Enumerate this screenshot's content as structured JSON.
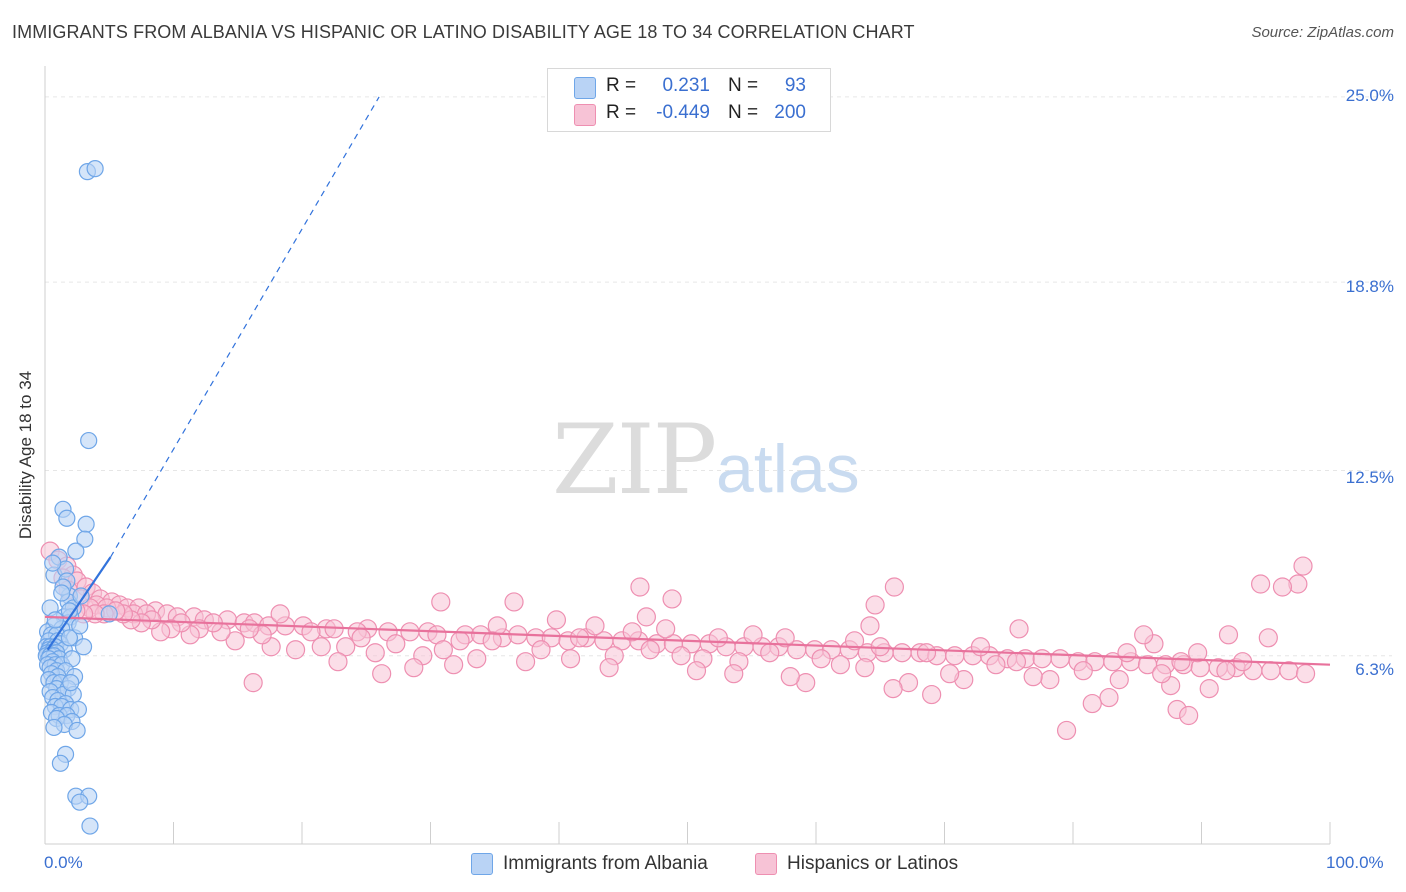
{
  "title": "IMMIGRANTS FROM ALBANIA VS HISPANIC OR LATINO DISABILITY AGE 18 TO 34 CORRELATION CHART",
  "source": "Source: ZipAtlas.com",
  "watermark": {
    "zip": "ZIP",
    "atlas": "atlas"
  },
  "colors": {
    "blue": "#6fa6e8",
    "blue_fill": "#b9d3f5",
    "blue_line": "#3273dc",
    "pink": "#ee8fb1",
    "pink_fill": "#f7c3d6",
    "pink_line": "#e8729c",
    "tick_text": "#3a6fd0",
    "grid": "#e6e6e6"
  },
  "legend": {
    "rows": [
      {
        "r_label": "R =",
        "r_value": "0.231",
        "n_label": "N =",
        "n_value": "93"
      },
      {
        "r_label": "R =",
        "r_value": "-0.449",
        "n_label": "N =",
        "n_value": "200"
      }
    ]
  },
  "bottom_legend": [
    "Immigrants from Albania",
    "Hispanics or Latinos"
  ],
  "chart_data": {
    "type": "scatter",
    "title": "IMMIGRANTS FROM ALBANIA VS HISPANIC OR LATINO DISABILITY AGE 18 TO 34 CORRELATION CHART",
    "xlabel": "",
    "ylabel": "Disability Age 18 to 34",
    "xlim": [
      0,
      100
    ],
    "ylim": [
      0,
      25.8
    ],
    "y_ticks": [
      6.3,
      12.5,
      18.8,
      25.0
    ],
    "y_tick_labels": [
      "6.3%",
      "12.5%",
      "18.8%",
      "25.0%"
    ],
    "x_tick_labels": [
      "0.0%",
      "100.0%"
    ],
    "grid": true,
    "series": [
      {
        "name": "Immigrants from Albania",
        "R": 0.231,
        "N": 93,
        "trend": {
          "x": [
            0.2,
            5.1
          ],
          "y": [
            6.5,
            9.6
          ],
          "dashed_to": [
            26,
            25.0
          ]
        },
        "points": [
          [
            3.3,
            22.5
          ],
          [
            3.9,
            22.6
          ],
          [
            3.4,
            13.5
          ],
          [
            1.4,
            11.2
          ],
          [
            1.7,
            10.9
          ],
          [
            3.2,
            10.7
          ],
          [
            3.1,
            10.2
          ],
          [
            2.4,
            9.8
          ],
          [
            1.1,
            9.6
          ],
          [
            0.7,
            9.0
          ],
          [
            1.6,
            9.2
          ],
          [
            1.7,
            8.8
          ],
          [
            1.9,
            8.3
          ],
          [
            1.4,
            8.6
          ],
          [
            1.8,
            8.1
          ],
          [
            2.2,
            7.9
          ],
          [
            1.5,
            7.6
          ],
          [
            2.0,
            7.6
          ],
          [
            0.4,
            7.9
          ],
          [
            1.8,
            7.4
          ],
          [
            0.7,
            7.3
          ],
          [
            1.3,
            7.2
          ],
          [
            0.2,
            7.1
          ],
          [
            0.5,
            7.0
          ],
          [
            0.9,
            7.0
          ],
          [
            2.3,
            6.9
          ],
          [
            0.3,
            6.8
          ],
          [
            1.0,
            6.8
          ],
          [
            1.2,
            6.7
          ],
          [
            0.1,
            6.6
          ],
          [
            0.4,
            6.6
          ],
          [
            0.8,
            6.6
          ],
          [
            0.3,
            6.5
          ],
          [
            0.6,
            6.5
          ],
          [
            1.5,
            6.5
          ],
          [
            0.2,
            6.4
          ],
          [
            0.5,
            6.4
          ],
          [
            0.9,
            6.4
          ],
          [
            0.1,
            6.3
          ],
          [
            0.4,
            6.3
          ],
          [
            0.7,
            6.3
          ],
          [
            1.1,
            6.2
          ],
          [
            0.3,
            6.2
          ],
          [
            0.6,
            6.1
          ],
          [
            0.2,
            6.0
          ],
          [
            0.8,
            6.0
          ],
          [
            1.3,
            6.0
          ],
          [
            2.1,
            6.2
          ],
          [
            0.4,
            5.9
          ],
          [
            0.9,
            5.8
          ],
          [
            1.6,
            5.8
          ],
          [
            0.5,
            5.7
          ],
          [
            1.0,
            5.6
          ],
          [
            2.3,
            5.6
          ],
          [
            0.3,
            5.5
          ],
          [
            0.7,
            5.4
          ],
          [
            1.2,
            5.4
          ],
          [
            0.9,
            5.2
          ],
          [
            1.8,
            5.2
          ],
          [
            0.4,
            5.1
          ],
          [
            1.4,
            5.0
          ],
          [
            2.2,
            5.0
          ],
          [
            0.6,
            4.9
          ],
          [
            1.0,
            4.8
          ],
          [
            1.6,
            4.7
          ],
          [
            0.8,
            4.6
          ],
          [
            1.3,
            4.6
          ],
          [
            2.0,
            4.5
          ],
          [
            2.6,
            4.5
          ],
          [
            0.5,
            4.4
          ],
          [
            1.1,
            4.3
          ],
          [
            1.7,
            4.3
          ],
          [
            0.9,
            4.2
          ],
          [
            2.1,
            4.1
          ],
          [
            1.5,
            4.0
          ],
          [
            0.7,
            3.9
          ],
          [
            2.5,
            3.8
          ],
          [
            1.6,
            3.0
          ],
          [
            1.2,
            2.7
          ],
          [
            2.4,
            1.6
          ],
          [
            3.4,
            1.6
          ],
          [
            2.7,
            1.4
          ],
          [
            3.5,
            0.6
          ],
          [
            5.0,
            7.7
          ],
          [
            3.0,
            6.6
          ],
          [
            1.9,
            6.9
          ],
          [
            2.7,
            7.3
          ],
          [
            0.8,
            7.5
          ],
          [
            1.9,
            7.8
          ],
          [
            1.3,
            8.4
          ],
          [
            2.8,
            8.3
          ],
          [
            0.6,
            9.4
          ],
          [
            2.0,
            5.4
          ]
        ]
      },
      {
        "name": "Hispanics or Latinos",
        "R": -0.449,
        "N": 200,
        "trend": {
          "x": [
            0.0,
            100.0
          ],
          "y": [
            7.6,
            6.0
          ]
        },
        "points": [
          [
            0.4,
            9.8
          ],
          [
            1.0,
            9.5
          ],
          [
            1.7,
            9.3
          ],
          [
            2.2,
            9.0
          ],
          [
            1.4,
            8.9
          ],
          [
            2.5,
            8.8
          ],
          [
            3.2,
            8.6
          ],
          [
            1.8,
            8.5
          ],
          [
            3.7,
            8.4
          ],
          [
            4.3,
            8.2
          ],
          [
            2.8,
            8.2
          ],
          [
            5.2,
            8.1
          ],
          [
            4.0,
            8.0
          ],
          [
            5.8,
            8.0
          ],
          [
            6.4,
            7.9
          ],
          [
            3.5,
            7.9
          ],
          [
            4.8,
            7.9
          ],
          [
            7.3,
            7.9
          ],
          [
            8.6,
            7.8
          ],
          [
            6.9,
            7.7
          ],
          [
            9.5,
            7.7
          ],
          [
            7.9,
            7.7
          ],
          [
            10.3,
            7.6
          ],
          [
            11.6,
            7.6
          ],
          [
            12.4,
            7.5
          ],
          [
            14.2,
            7.5
          ],
          [
            15.5,
            7.4
          ],
          [
            16.3,
            7.4
          ],
          [
            18.7,
            7.3
          ],
          [
            17.4,
            7.3
          ],
          [
            20.1,
            7.3
          ],
          [
            21.9,
            7.2
          ],
          [
            22.5,
            7.2
          ],
          [
            25.1,
            7.2
          ],
          [
            24.3,
            7.1
          ],
          [
            26.7,
            7.1
          ],
          [
            28.4,
            7.1
          ],
          [
            29.8,
            7.1
          ],
          [
            30.5,
            7.0
          ],
          [
            32.7,
            7.0
          ],
          [
            33.9,
            7.0
          ],
          [
            35.6,
            6.9
          ],
          [
            36.8,
            7.0
          ],
          [
            38.2,
            6.9
          ],
          [
            39.4,
            6.9
          ],
          [
            40.7,
            6.8
          ],
          [
            42.1,
            6.9
          ],
          [
            43.5,
            6.8
          ],
          [
            44.9,
            6.8
          ],
          [
            46.2,
            6.8
          ],
          [
            47.6,
            6.7
          ],
          [
            48.9,
            6.7
          ],
          [
            50.3,
            6.7
          ],
          [
            51.7,
            6.7
          ],
          [
            53.0,
            6.6
          ],
          [
            54.4,
            6.6
          ],
          [
            55.8,
            6.6
          ],
          [
            57.1,
            6.6
          ],
          [
            58.5,
            6.5
          ],
          [
            59.9,
            6.5
          ],
          [
            61.2,
            6.5
          ],
          [
            62.6,
            6.5
          ],
          [
            64.0,
            6.4
          ],
          [
            65.3,
            6.4
          ],
          [
            66.7,
            6.4
          ],
          [
            68.1,
            6.4
          ],
          [
            69.4,
            6.3
          ],
          [
            70.8,
            6.3
          ],
          [
            72.2,
            6.3
          ],
          [
            73.5,
            6.3
          ],
          [
            74.9,
            6.2
          ],
          [
            76.3,
            6.2
          ],
          [
            77.6,
            6.2
          ],
          [
            79.0,
            6.2
          ],
          [
            80.4,
            6.1
          ],
          [
            81.7,
            6.1
          ],
          [
            83.1,
            6.1
          ],
          [
            84.5,
            6.1
          ],
          [
            85.8,
            6.0
          ],
          [
            87.2,
            6.0
          ],
          [
            88.6,
            6.0
          ],
          [
            89.9,
            5.9
          ],
          [
            91.3,
            5.9
          ],
          [
            92.7,
            5.9
          ],
          [
            94.0,
            5.8
          ],
          [
            95.4,
            5.8
          ],
          [
            96.8,
            5.8
          ],
          [
            98.1,
            5.7
          ],
          [
            97.5,
            8.7
          ],
          [
            96.3,
            8.6
          ],
          [
            94.6,
            8.7
          ],
          [
            97.9,
            9.3
          ],
          [
            95.2,
            6.9
          ],
          [
            92.1,
            7.0
          ],
          [
            89.7,
            6.4
          ],
          [
            88.4,
            6.1
          ],
          [
            86.3,
            6.7
          ],
          [
            85.5,
            7.0
          ],
          [
            83.6,
            5.5
          ],
          [
            82.8,
            4.9
          ],
          [
            81.5,
            4.7
          ],
          [
            79.5,
            3.8
          ],
          [
            87.6,
            5.3
          ],
          [
            88.1,
            4.5
          ],
          [
            89.0,
            4.3
          ],
          [
            90.6,
            5.2
          ],
          [
            91.9,
            5.8
          ],
          [
            93.2,
            6.1
          ],
          [
            86.9,
            5.7
          ],
          [
            84.2,
            6.4
          ],
          [
            80.8,
            5.8
          ],
          [
            78.2,
            5.5
          ],
          [
            76.9,
            5.6
          ],
          [
            75.6,
            6.1
          ],
          [
            74.0,
            6.0
          ],
          [
            72.8,
            6.6
          ],
          [
            71.5,
            5.5
          ],
          [
            70.4,
            5.7
          ],
          [
            69.0,
            5.0
          ],
          [
            68.6,
            6.4
          ],
          [
            67.2,
            5.4
          ],
          [
            66.0,
            5.2
          ],
          [
            65.0,
            6.6
          ],
          [
            63.8,
            5.9
          ],
          [
            63.0,
            6.8
          ],
          [
            61.9,
            6.0
          ],
          [
            60.4,
            6.2
          ],
          [
            59.2,
            5.4
          ],
          [
            58.0,
            5.6
          ],
          [
            57.6,
            6.9
          ],
          [
            56.4,
            6.4
          ],
          [
            55.1,
            7.0
          ],
          [
            54.0,
            6.1
          ],
          [
            53.6,
            5.7
          ],
          [
            52.4,
            6.9
          ],
          [
            51.2,
            6.2
          ],
          [
            50.7,
            5.8
          ],
          [
            49.5,
            6.3
          ],
          [
            48.3,
            7.2
          ],
          [
            47.1,
            6.5
          ],
          [
            46.8,
            7.6
          ],
          [
            45.7,
            7.1
          ],
          [
            44.3,
            6.3
          ],
          [
            43.9,
            5.9
          ],
          [
            42.8,
            7.3
          ],
          [
            41.6,
            6.9
          ],
          [
            40.9,
            6.2
          ],
          [
            39.8,
            7.5
          ],
          [
            38.6,
            6.5
          ],
          [
            37.4,
            6.1
          ],
          [
            36.5,
            8.1
          ],
          [
            35.2,
            7.3
          ],
          [
            34.8,
            6.8
          ],
          [
            33.6,
            6.2
          ],
          [
            32.3,
            6.8
          ],
          [
            31.8,
            6.0
          ],
          [
            31.0,
            6.5
          ],
          [
            29.4,
            6.3
          ],
          [
            28.7,
            5.9
          ],
          [
            27.3,
            6.7
          ],
          [
            26.2,
            5.7
          ],
          [
            25.7,
            6.4
          ],
          [
            24.6,
            6.9
          ],
          [
            23.4,
            6.6
          ],
          [
            22.8,
            6.1
          ],
          [
            21.5,
            6.6
          ],
          [
            20.7,
            7.1
          ],
          [
            19.5,
            6.5
          ],
          [
            18.3,
            7.7
          ],
          [
            17.6,
            6.6
          ],
          [
            16.9,
            7.0
          ],
          [
            15.9,
            7.2
          ],
          [
            14.8,
            6.8
          ],
          [
            13.7,
            7.1
          ],
          [
            13.1,
            7.4
          ],
          [
            12.0,
            7.2
          ],
          [
            11.3,
            7.0
          ],
          [
            10.6,
            7.4
          ],
          [
            9.8,
            7.2
          ],
          [
            9.0,
            7.1
          ],
          [
            8.3,
            7.5
          ],
          [
            7.5,
            7.4
          ],
          [
            6.7,
            7.5
          ],
          [
            6.1,
            7.7
          ],
          [
            5.5,
            7.8
          ],
          [
            4.6,
            7.7
          ],
          [
            3.9,
            7.7
          ],
          [
            3.0,
            7.7
          ],
          [
            2.4,
            7.8
          ],
          [
            16.2,
            5.4
          ],
          [
            30.8,
            8.1
          ],
          [
            46.3,
            8.6
          ],
          [
            64.2,
            7.3
          ],
          [
            64.6,
            8.0
          ],
          [
            66.1,
            8.6
          ],
          [
            75.8,
            7.2
          ],
          [
            48.8,
            8.2
          ]
        ]
      }
    ]
  }
}
